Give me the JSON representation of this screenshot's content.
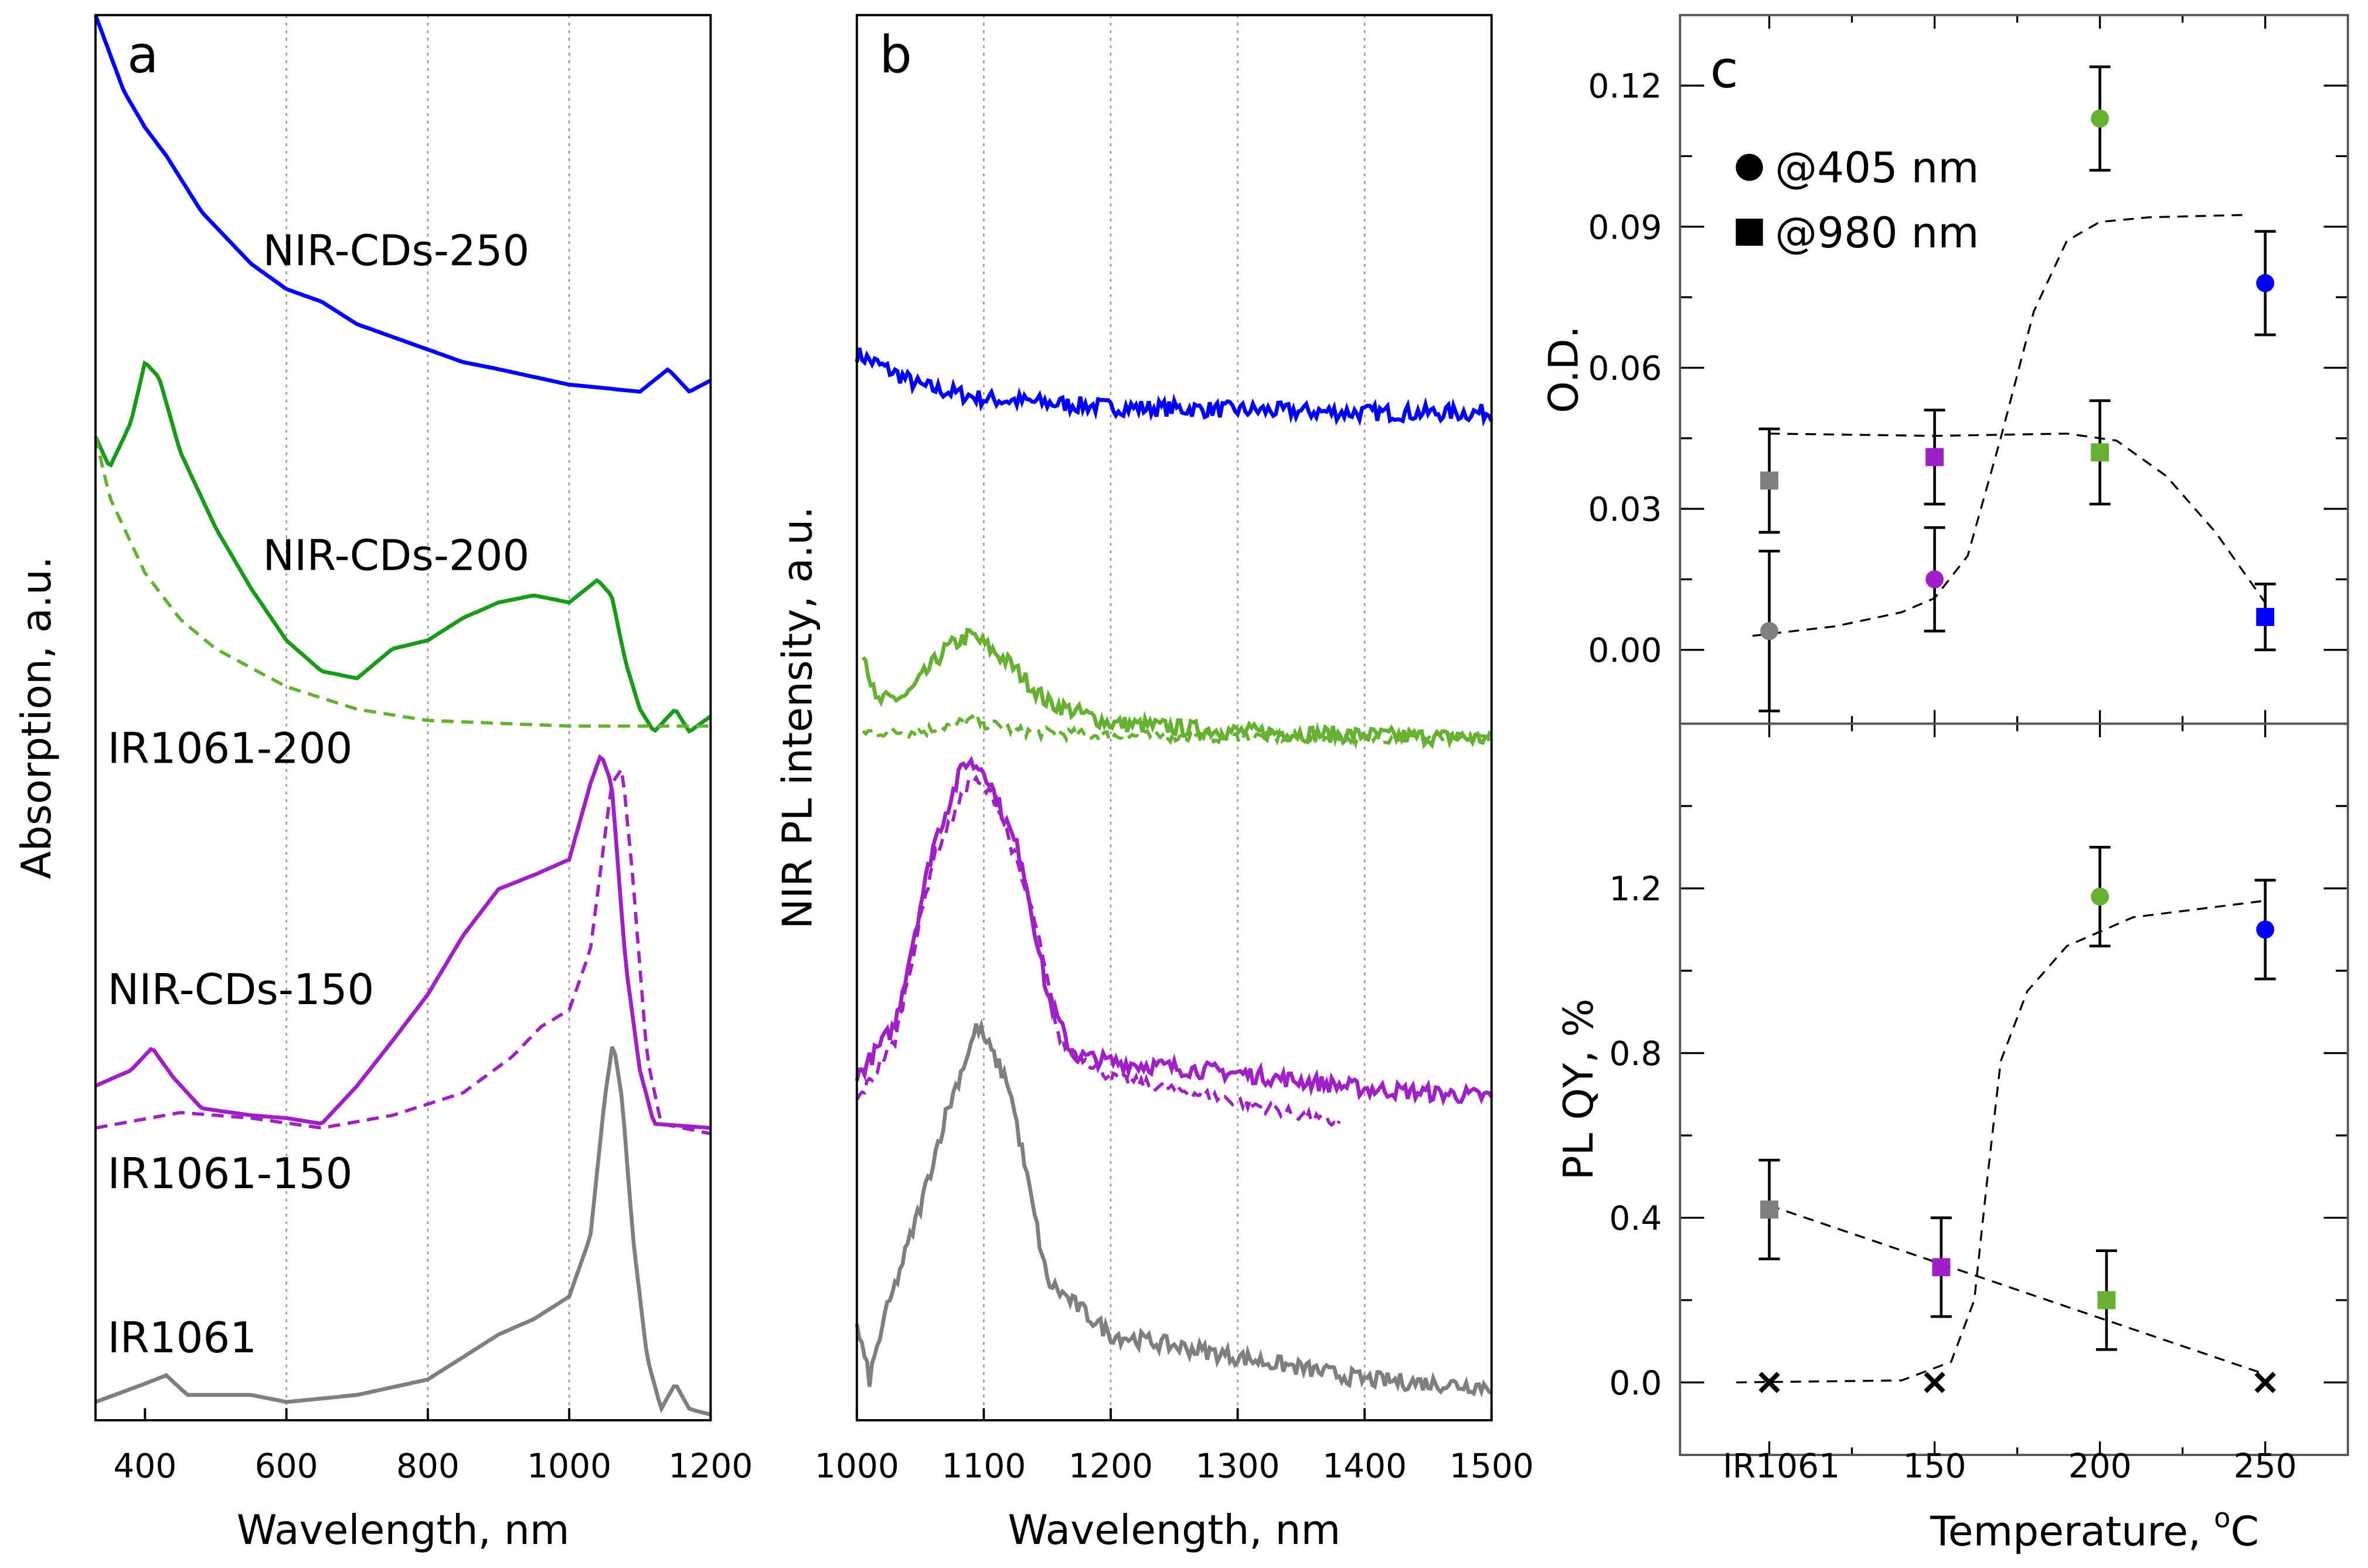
{
  "chart_data": [
    {
      "panel": "a",
      "type": "line",
      "xlabel": "Wavelength, nm",
      "ylabel": "Absorption, a.u.",
      "xlim": [
        330,
        1200
      ],
      "ylim": [
        0,
        100
      ],
      "xticks": [
        400,
        600,
        800,
        1000,
        1200
      ],
      "grid_x": [
        600,
        800,
        1000
      ],
      "series": [
        {
          "name": "NIR-CDs-250",
          "color": "#0000ff",
          "dash": false,
          "points": [
            [
              330,
              100
            ],
            [
              370,
              94.6
            ],
            [
              400,
              92
            ],
            [
              430,
              90
            ],
            [
              480,
              86
            ],
            [
              550,
              82.3
            ],
            [
              600,
              80.5
            ],
            [
              650,
              79.6
            ],
            [
              700,
              78
            ],
            [
              800,
              76.2
            ],
            [
              850,
              75.3
            ],
            [
              900,
              74.8
            ],
            [
              1000,
              73.7
            ],
            [
              1100,
              73.2
            ],
            [
              1140,
              74.8
            ],
            [
              1170,
              73.2
            ],
            [
              1200,
              74
            ]
          ]
        },
        {
          "name": "NIR-CDs-200",
          "color": "#1a9a1a",
          "dash": false,
          "points": [
            [
              330,
              70
            ],
            [
              350,
              67.8
            ],
            [
              380,
              71
            ],
            [
              400,
              75.3
            ],
            [
              420,
              74.2
            ],
            [
              450,
              68.9
            ],
            [
              500,
              63.5
            ],
            [
              550,
              59.2
            ],
            [
              600,
              55.5
            ],
            [
              650,
              53.3
            ],
            [
              700,
              52.8
            ],
            [
              750,
              54.9
            ],
            [
              800,
              55.5
            ],
            [
              850,
              57.1
            ],
            [
              900,
              58.2
            ],
            [
              950,
              58.7
            ],
            [
              1000,
              58.2
            ],
            [
              1040,
              59.8
            ],
            [
              1060,
              58.7
            ],
            [
              1080,
              53.9
            ],
            [
              1100,
              50.6
            ],
            [
              1120,
              49
            ],
            [
              1150,
              50.6
            ],
            [
              1170,
              49
            ],
            [
              1200,
              50.1
            ]
          ]
        },
        {
          "name": "IR1061-200",
          "color": "#66b032",
          "dash": true,
          "points": [
            [
              330,
              70
            ],
            [
              350,
              65.7
            ],
            [
              400,
              60.3
            ],
            [
              450,
              57
            ],
            [
              500,
              54.9
            ],
            [
              600,
              52.2
            ],
            [
              700,
              50.6
            ],
            [
              800,
              49.8
            ],
            [
              1000,
              49.4
            ],
            [
              1200,
              49.4
            ]
          ]
        },
        {
          "name": "NIR-CDs-150",
          "color": "#a020c8",
          "dash": false,
          "points": [
            [
              330,
              23.8
            ],
            [
              380,
              24.9
            ],
            [
              410,
              26.5
            ],
            [
              440,
              24.4
            ],
            [
              480,
              22.2
            ],
            [
              550,
              21.7
            ],
            [
              600,
              21.5
            ],
            [
              650,
              21.1
            ],
            [
              700,
              23.8
            ],
            [
              750,
              27
            ],
            [
              800,
              30.3
            ],
            [
              850,
              34.5
            ],
            [
              900,
              37.8
            ],
            [
              950,
              38.8
            ],
            [
              1000,
              39.9
            ],
            [
              1030,
              45.3
            ],
            [
              1045,
              47.4
            ],
            [
              1060,
              45.3
            ],
            [
              1080,
              32.4
            ],
            [
              1100,
              24.9
            ],
            [
              1120,
              21.1
            ],
            [
              1200,
              20.8
            ]
          ]
        },
        {
          "name": "IR1061-150",
          "color": "#a020c8",
          "dash": true,
          "points": [
            [
              330,
              20.8
            ],
            [
              450,
              21.9
            ],
            [
              550,
              21.5
            ],
            [
              650,
              20.8
            ],
            [
              750,
              21.7
            ],
            [
              850,
              23.3
            ],
            [
              920,
              25.9
            ],
            [
              960,
              28
            ],
            [
              1000,
              29.2
            ],
            [
              1030,
              33.5
            ],
            [
              1060,
              45.3
            ],
            [
              1075,
              46.4
            ],
            [
              1090,
              38.6
            ],
            [
              1110,
              25.9
            ],
            [
              1130,
              21.1
            ],
            [
              1200,
              20.4
            ]
          ]
        },
        {
          "name": "IR1061",
          "color": "#7f7f7f",
          "dash": false,
          "points": [
            [
              330,
              1.3
            ],
            [
              400,
              2.6
            ],
            [
              430,
              3.2
            ],
            [
              460,
              1.8
            ],
            [
              550,
              1.8
            ],
            [
              600,
              1.3
            ],
            [
              700,
              1.8
            ],
            [
              800,
              2.9
            ],
            [
              850,
              4.5
            ],
            [
              900,
              6.1
            ],
            [
              950,
              7.2
            ],
            [
              1000,
              8.8
            ],
            [
              1030,
              13.1
            ],
            [
              1050,
              22.8
            ],
            [
              1062,
              27
            ],
            [
              1075,
              22.8
            ],
            [
              1090,
              13.1
            ],
            [
              1110,
              4.5
            ],
            [
              1130,
              0.8
            ],
            [
              1150,
              2.6
            ],
            [
              1170,
              0.8
            ],
            [
              1200,
              0.4
            ]
          ]
        }
      ],
      "annotations": [
        {
          "text": "NIR-CDs-250",
          "series": "NIR-CDs-250"
        },
        {
          "text": "NIR-CDs-200",
          "series": "NIR-CDs-200"
        },
        {
          "text": "IR1061-200",
          "series": "IR1061-200"
        },
        {
          "text": "NIR-CDs-150",
          "series": "NIR-CDs-150"
        },
        {
          "text": "IR1061-150",
          "series": "IR1061-150"
        },
        {
          "text": "IR1061",
          "series": "IR1061"
        }
      ]
    },
    {
      "panel": "b",
      "type": "line",
      "xlabel": "Wavelength, nm",
      "ylabel": "NIR PL intensity, a.u.",
      "xlim": [
        1000,
        1500
      ],
      "ylim": [
        0,
        100
      ],
      "xticks": [
        1000,
        1100,
        1200,
        1300,
        1400,
        1500
      ],
      "grid_x": [
        1100,
        1200,
        1300,
        1400
      ],
      "series": [
        {
          "name": "NIR-CDs-250",
          "color": "#0000ff",
          "dash": false,
          "points": [
            [
              1000,
              75.9
            ],
            [
              1050,
              73.6
            ],
            [
              1100,
              72.7
            ],
            [
              1200,
              72.1
            ],
            [
              1300,
              71.9
            ],
            [
              1400,
              71.7
            ],
            [
              1500,
              71.7
            ]
          ]
        },
        {
          "name": "NIR-CDs-200",
          "color": "#66b032",
          "dash": false,
          "points": [
            [
              1005,
              54.9
            ],
            [
              1015,
              51.1
            ],
            [
              1040,
              51.6
            ],
            [
              1070,
              54.9
            ],
            [
              1090,
              55.9
            ],
            [
              1120,
              53.9
            ],
            [
              1150,
              51.1
            ],
            [
              1200,
              49.6
            ],
            [
              1300,
              49
            ],
            [
              1500,
              48.5
            ]
          ]
        },
        {
          "name": "IR1061-200",
          "color": "#66b032",
          "dash": true,
          "points": [
            [
              1005,
              49
            ],
            [
              1050,
              49
            ],
            [
              1090,
              49.8
            ],
            [
              1130,
              49
            ],
            [
              1200,
              48.7
            ],
            [
              1500,
              48.5
            ]
          ]
        },
        {
          "name": "NIR-CDs-150",
          "color": "#a020c8",
          "dash": false,
          "points": [
            [
              1000,
              24.4
            ],
            [
              1030,
              28.1
            ],
            [
              1060,
              40.9
            ],
            [
              1085,
              46.9
            ],
            [
              1100,
              46.4
            ],
            [
              1130,
              39.9
            ],
            [
              1150,
              30.3
            ],
            [
              1170,
              26
            ],
            [
              1200,
              25.5
            ],
            [
              1300,
              24.7
            ],
            [
              1400,
              23.6
            ],
            [
              1500,
              23
            ]
          ]
        },
        {
          "name": "IR1061-150",
          "color": "#a020c8",
          "dash": true,
          "points": [
            [
              1000,
              22.7
            ],
            [
              1030,
              27
            ],
            [
              1060,
              39.9
            ],
            [
              1090,
              45.7
            ],
            [
              1110,
              44.2
            ],
            [
              1140,
              35.6
            ],
            [
              1160,
              27
            ],
            [
              1200,
              24.4
            ],
            [
              1300,
              22.7
            ],
            [
              1380,
              21.1
            ]
          ]
        },
        {
          "name": "IR1061",
          "color": "#7f7f7f",
          "dash": false,
          "points": [
            [
              1000,
              6.7
            ],
            [
              1010,
              2.9
            ],
            [
              1020,
              6.7
            ],
            [
              1050,
              15.2
            ],
            [
              1070,
              21.7
            ],
            [
              1095,
              28.1
            ],
            [
              1120,
              23.8
            ],
            [
              1150,
              9.9
            ],
            [
              1200,
              6.1
            ],
            [
              1300,
              4.5
            ],
            [
              1400,
              2.9
            ],
            [
              1500,
              2.4
            ]
          ]
        }
      ]
    },
    {
      "panel": "c",
      "type": "scatter",
      "xlabel": "Temperature, oC",
      "xlabel_main": "Temperature, ",
      "xlabel_sup": "o",
      "xlabel_unit": "C",
      "categories": [
        "IR1061",
        "150",
        "200",
        "250"
      ],
      "category_x": [
        100,
        150,
        200,
        250
      ],
      "xlim": [
        73,
        275
      ],
      "legend": [
        {
          "marker": "circle",
          "label": "@405 nm"
        },
        {
          "marker": "square",
          "label": "@980 nm"
        }
      ],
      "legend_position": "top-left",
      "top": {
        "ylabel": "O.D.",
        "ylim": [
          -0.0157,
          0.135
        ],
        "yticks": [
          "0.00",
          "0.03",
          "0.06",
          "0.09",
          "0.12"
        ],
        "circles": [
          {
            "x": 100,
            "y": 0.004,
            "err": 0.017,
            "color": "#7f7f7f"
          },
          {
            "x": 150,
            "y": 0.015,
            "err": 0.011,
            "color": "#a020c8"
          },
          {
            "x": 200,
            "y": 0.113,
            "err": 0.011,
            "color": "#66b032"
          },
          {
            "x": 250,
            "y": 0.078,
            "err": 0.011,
            "color": "#0000ff"
          }
        ],
        "squares": [
          {
            "x": 100,
            "y": 0.036,
            "err": 0.011,
            "color": "#7f7f7f"
          },
          {
            "x": 150,
            "y": 0.041,
            "err": 0.01,
            "color": "#a020c8"
          },
          {
            "x": 200,
            "y": 0.042,
            "err": 0.011,
            "color": "#66b032"
          },
          {
            "x": 250,
            "y": 0.007,
            "err": 0.007,
            "color": "#0000ff"
          }
        ],
        "fits": [
          [
            [
              95,
              0.003
            ],
            [
              120,
              0.005
            ],
            [
              140,
              0.008
            ],
            [
              150,
              0.011
            ],
            [
              160,
              0.02
            ],
            [
              170,
              0.045
            ],
            [
              180,
              0.072
            ],
            [
              190,
              0.087
            ],
            [
              200,
              0.091
            ],
            [
              215,
              0.092
            ],
            [
              245,
              0.0925
            ]
          ],
          [
            [
              100,
              0.046
            ],
            [
              150,
              0.0455
            ],
            [
              190,
              0.046
            ],
            [
              205,
              0.0445
            ],
            [
              220,
              0.037
            ],
            [
              235,
              0.025
            ],
            [
              250,
              0.01
            ]
          ]
        ]
      },
      "bottom": {
        "ylabel": "PL QY, %",
        "ylim": [
          -0.176,
          1.6
        ],
        "yticks": [
          "0.0",
          "0.4",
          "0.8",
          "1.2"
        ],
        "circles": [
          {
            "x": 200,
            "y": 1.18,
            "err": 0.12,
            "color": "#66b032"
          },
          {
            "x": 250,
            "y": 1.1,
            "err": 0.12,
            "color": "#0000ff"
          }
        ],
        "squares": [
          {
            "x": 100,
            "y": 0.42,
            "err": 0.12,
            "color": "#7f7f7f"
          },
          {
            "x": 152,
            "y": 0.28,
            "err": 0.12,
            "color": "#a020c8"
          },
          {
            "x": 202,
            "y": 0.2,
            "err": 0.12,
            "color": "#66b032"
          }
        ],
        "crosses": [
          {
            "x": 100,
            "y": 0
          },
          {
            "x": 150,
            "y": 0
          },
          {
            "x": 250,
            "y": 0
          }
        ],
        "fits": [
          [
            [
              90,
              0
            ],
            [
              140,
              0.005
            ],
            [
              155,
              0.05
            ],
            [
              162,
              0.2
            ],
            [
              166,
              0.5
            ],
            [
              170,
              0.78
            ],
            [
              178,
              0.95
            ],
            [
              190,
              1.06
            ],
            [
              210,
              1.13
            ],
            [
              250,
              1.17
            ]
          ],
          [
            [
              100,
              0.43
            ],
            [
              250,
              0.02
            ]
          ]
        ]
      }
    }
  ],
  "labels": {
    "a": "a",
    "b": "b",
    "c": "c"
  }
}
